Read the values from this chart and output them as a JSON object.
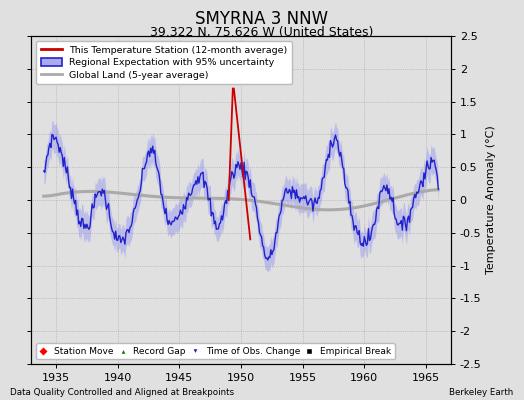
{
  "title": "SMYRNA 3 NNW",
  "subtitle": "39.322 N, 75.626 W (United States)",
  "ylabel": "Temperature Anomaly (°C)",
  "xlabel_note": "Data Quality Controlled and Aligned at Breakpoints",
  "attribution": "Berkeley Earth",
  "xlim": [
    1933,
    1967
  ],
  "ylim": [
    -2.5,
    2.5
  ],
  "yticks": [
    -2.5,
    -2,
    -1.5,
    -1,
    -0.5,
    0,
    0.5,
    1,
    1.5,
    2,
    2.5
  ],
  "xticks": [
    1935,
    1940,
    1945,
    1950,
    1955,
    1960,
    1965
  ],
  "bg_color": "#e0e0e0",
  "plot_bg_color": "#e0e0e0",
  "regional_color": "#2222cc",
  "regional_shade_color": "#aaaaee",
  "station_color": "#cc0000",
  "global_color": "#aaaaaa",
  "obs_marker_color": "#2222bb",
  "title_fontsize": 12,
  "subtitle_fontsize": 9,
  "tick_fontsize": 8,
  "label_fontsize": 8
}
